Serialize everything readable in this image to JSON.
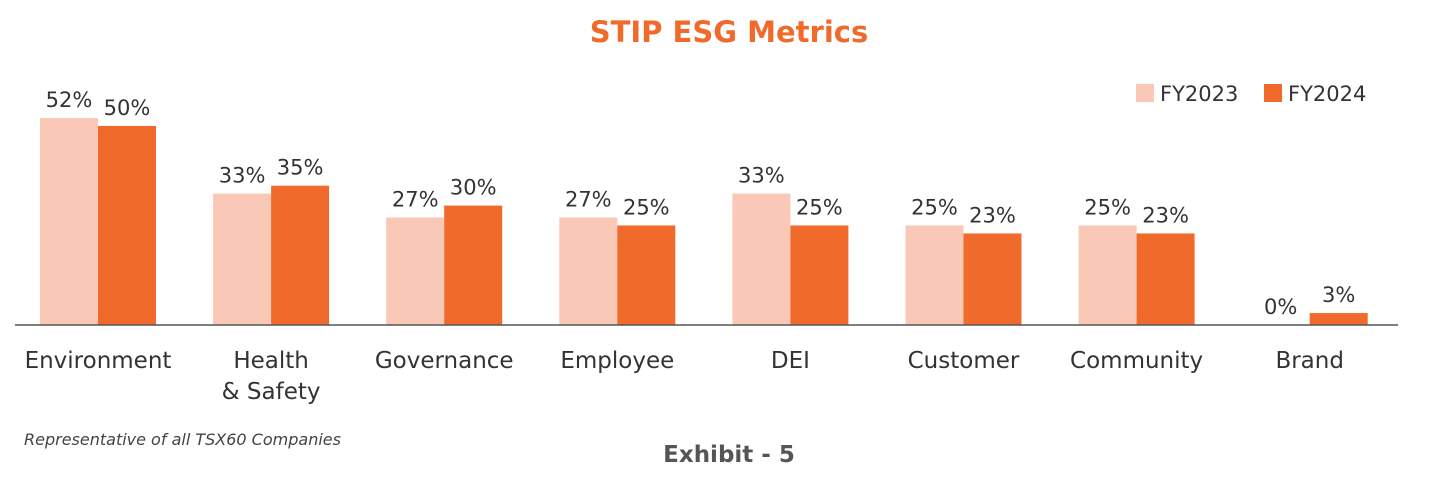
{
  "chart_data": {
    "type": "bar",
    "title": "STIP ESG Metrics",
    "categories": [
      [
        "Environment"
      ],
      [
        "Health",
        "& Safety"
      ],
      [
        "Governance"
      ],
      [
        "Employee"
      ],
      [
        "DEI"
      ],
      [
        "Customer"
      ],
      [
        "Community"
      ],
      [
        "Brand"
      ]
    ],
    "series": [
      {
        "name": "FY2023",
        "color": "#F9C8B6",
        "values": [
          52,
          33,
          27,
          27,
          33,
          25,
          25,
          0
        ]
      },
      {
        "name": "FY2024",
        "color": "#F06A2B",
        "values": [
          50,
          35,
          30,
          25,
          25,
          23,
          23,
          3
        ]
      }
    ],
    "value_suffix": "%",
    "ylim": [
      0,
      52
    ],
    "grid": false,
    "legend_position": "top-right",
    "title_color": "#F06A2B"
  },
  "footnote": "Representative of all TSX60 Companies",
  "exhibit_label": "Exhibit - 5"
}
